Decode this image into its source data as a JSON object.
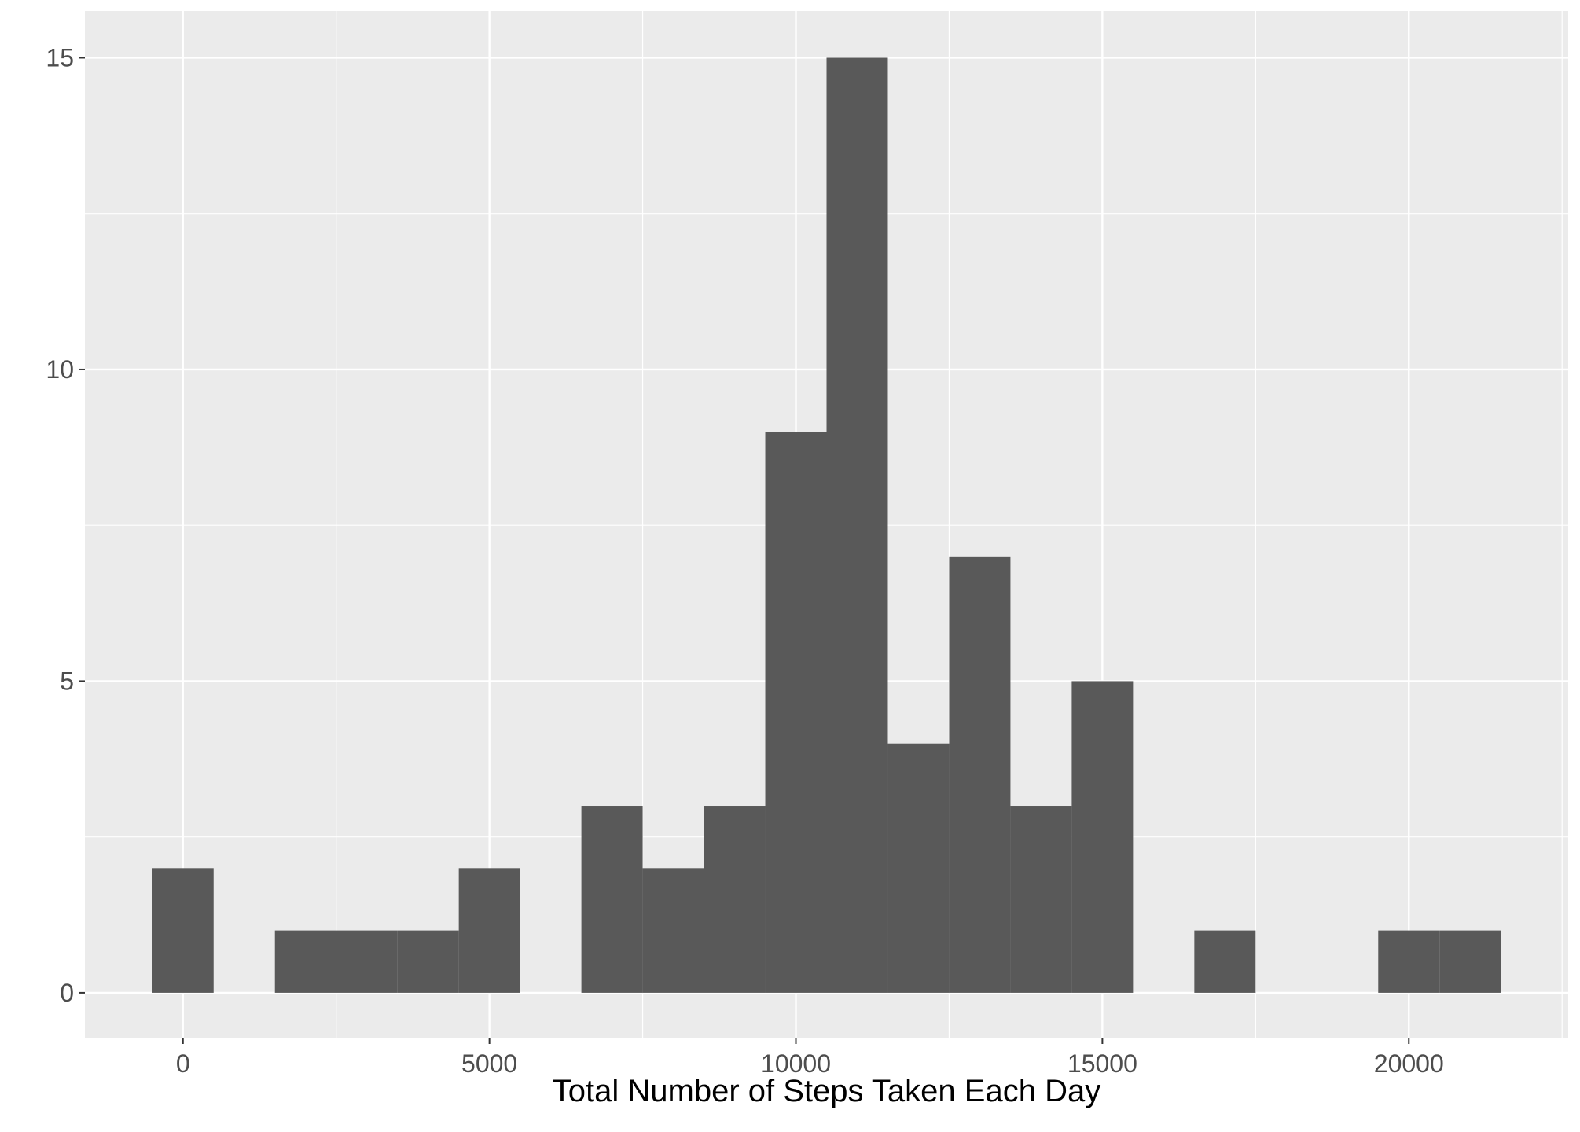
{
  "chart_data": {
    "type": "bar",
    "subtype": "histogram",
    "title": "",
    "xlabel": "Total Number of Steps Taken Each Day",
    "ylabel": "",
    "bin_width": 1000,
    "bins": [
      {
        "center": 0,
        "count": 2
      },
      {
        "center": 1000,
        "count": 0
      },
      {
        "center": 2000,
        "count": 1
      },
      {
        "center": 3000,
        "count": 1
      },
      {
        "center": 4000,
        "count": 1
      },
      {
        "center": 5000,
        "count": 2
      },
      {
        "center": 6000,
        "count": 0
      },
      {
        "center": 7000,
        "count": 3
      },
      {
        "center": 8000,
        "count": 2
      },
      {
        "center": 9000,
        "count": 3
      },
      {
        "center": 10000,
        "count": 9
      },
      {
        "center": 11000,
        "count": 15
      },
      {
        "center": 12000,
        "count": 4
      },
      {
        "center": 13000,
        "count": 7
      },
      {
        "center": 14000,
        "count": 3
      },
      {
        "center": 15000,
        "count": 5
      },
      {
        "center": 16000,
        "count": 0
      },
      {
        "center": 17000,
        "count": 1
      },
      {
        "center": 18000,
        "count": 0
      },
      {
        "center": 19000,
        "count": 0
      },
      {
        "center": 20000,
        "count": 1
      },
      {
        "center": 21000,
        "count": 1
      }
    ],
    "xlim": [
      -1600,
      22600
    ],
    "ylim": [
      -0.72,
      15.75
    ],
    "x_ticks": [
      0,
      5000,
      10000,
      15000,
      20000
    ],
    "x_tick_labels": [
      "0",
      "5000",
      "10000",
      "15000",
      "20000"
    ],
    "y_ticks": [
      0,
      5,
      10,
      15
    ],
    "y_tick_labels": [
      "0",
      "5",
      "10",
      "15"
    ],
    "grid": true,
    "colors": {
      "panel_background": "#EBEBEB",
      "grid_major": "#FFFFFF",
      "bar_fill": "#595959",
      "tick_mark": "#333333"
    }
  }
}
